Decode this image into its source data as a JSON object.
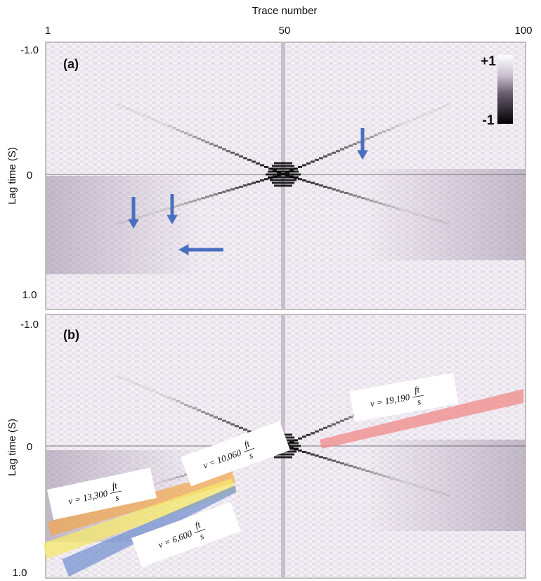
{
  "x_axis": {
    "label": "Trace number",
    "ticks": [
      "1",
      "50",
      "100"
    ]
  },
  "panels": [
    {
      "label": "(a)",
      "y_axis": {
        "label": "Lag time (S)",
        "ticks": [
          "-1.0",
          "0",
          "1.0"
        ]
      },
      "colorbar": {
        "top": "+1",
        "bottom": "-1"
      }
    },
    {
      "label": "(b)",
      "y_axis": {
        "label": "Lag time (S)",
        "ticks": [
          "-1.0",
          "0",
          "1.0"
        ]
      },
      "annotations": [
        {
          "prefix": "v = 19,190",
          "numerator": "ft",
          "denominator": "s"
        },
        {
          "prefix": "v = 10,060",
          "numerator": "ft",
          "denominator": "s"
        },
        {
          "prefix": "v = 13,300",
          "numerator": "ft",
          "denominator": "s"
        },
        {
          "prefix": "v = 6,600",
          "numerator": "ft",
          "denominator": "s"
        }
      ]
    }
  ]
}
